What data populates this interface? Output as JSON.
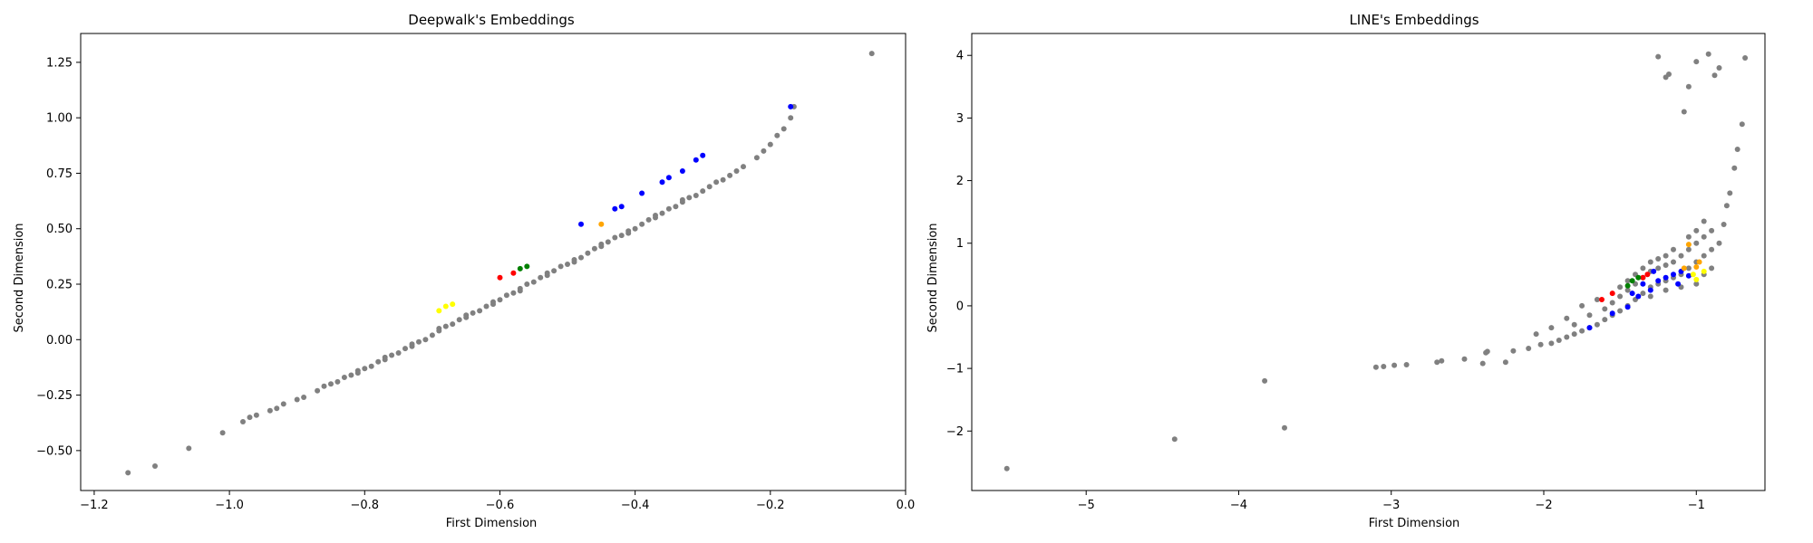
{
  "chart_data": [
    {
      "type": "scatter",
      "title": "Deepwalk's Embeddings",
      "xlabel": "First Dimension",
      "ylabel": "Second Dimension",
      "xlim": [
        -1.22,
        0.0
      ],
      "ylim": [
        -0.68,
        1.38
      ],
      "xticks": [
        -1.2,
        -1.0,
        -0.8,
        -0.6,
        -0.4,
        -0.2,
        0.0
      ],
      "xtick_labels": [
        "−1.2",
        "−1.0",
        "−0.8",
        "−0.6",
        "−0.4",
        "−0.2",
        "0.0"
      ],
      "yticks": [
        -0.5,
        -0.25,
        0.0,
        0.25,
        0.5,
        0.75,
        1.0,
        1.25
      ],
      "ytick_labels": [
        "−0.50",
        "−0.25",
        "0.00",
        "0.25",
        "0.50",
        "0.75",
        "1.00",
        "1.25"
      ],
      "grid": false,
      "series": [
        {
          "color": "#808080",
          "points": [
            [
              -1.15,
              -0.6
            ],
            [
              -1.11,
              -0.57
            ],
            [
              -1.06,
              -0.49
            ],
            [
              -1.01,
              -0.42
            ],
            [
              -0.98,
              -0.37
            ],
            [
              -0.97,
              -0.35
            ],
            [
              -0.96,
              -0.34
            ],
            [
              -0.94,
              -0.32
            ],
            [
              -0.93,
              -0.31
            ],
            [
              -0.92,
              -0.29
            ],
            [
              -0.9,
              -0.27
            ],
            [
              -0.89,
              -0.26
            ],
            [
              -0.87,
              -0.23
            ],
            [
              -0.86,
              -0.21
            ],
            [
              -0.85,
              -0.2
            ],
            [
              -0.84,
              -0.19
            ],
            [
              -0.83,
              -0.17
            ],
            [
              -0.82,
              -0.16
            ],
            [
              -0.81,
              -0.15
            ],
            [
              -0.8,
              -0.13
            ],
            [
              -0.79,
              -0.12
            ],
            [
              -0.78,
              -0.1
            ],
            [
              -0.77,
              -0.09
            ],
            [
              -0.76,
              -0.07
            ],
            [
              -0.75,
              -0.06
            ],
            [
              -0.74,
              -0.04
            ],
            [
              -0.73,
              -0.03
            ],
            [
              -0.72,
              -0.01
            ],
            [
              -0.71,
              0.0
            ],
            [
              -0.7,
              0.02
            ],
            [
              -0.69,
              0.04
            ],
            [
              -0.68,
              0.06
            ],
            [
              -0.67,
              0.07
            ],
            [
              -0.66,
              0.09
            ],
            [
              -0.65,
              0.1
            ],
            [
              -0.64,
              0.12
            ],
            [
              -0.63,
              0.13
            ],
            [
              -0.62,
              0.15
            ],
            [
              -0.61,
              0.17
            ],
            [
              -0.6,
              0.18
            ],
            [
              -0.59,
              0.2
            ],
            [
              -0.58,
              0.21
            ],
            [
              -0.57,
              0.23
            ],
            [
              -0.56,
              0.25
            ],
            [
              -0.55,
              0.26
            ],
            [
              -0.54,
              0.28
            ],
            [
              -0.53,
              0.29
            ],
            [
              -0.52,
              0.31
            ],
            [
              -0.51,
              0.33
            ],
            [
              -0.5,
              0.34
            ],
            [
              -0.49,
              0.36
            ],
            [
              -0.48,
              0.37
            ],
            [
              -0.47,
              0.39
            ],
            [
              -0.46,
              0.41
            ],
            [
              -0.45,
              0.42
            ],
            [
              -0.44,
              0.44
            ],
            [
              -0.43,
              0.46
            ],
            [
              -0.42,
              0.47
            ],
            [
              -0.41,
              0.49
            ],
            [
              -0.4,
              0.5
            ],
            [
              -0.39,
              0.52
            ],
            [
              -0.38,
              0.54
            ],
            [
              -0.37,
              0.55
            ],
            [
              -0.36,
              0.57
            ],
            [
              -0.35,
              0.59
            ],
            [
              -0.34,
              0.6
            ],
            [
              -0.33,
              0.62
            ],
            [
              -0.32,
              0.64
            ],
            [
              -0.31,
              0.65
            ],
            [
              -0.3,
              0.67
            ],
            [
              -0.29,
              0.69
            ],
            [
              -0.28,
              0.71
            ],
            [
              -0.27,
              0.72
            ],
            [
              -0.26,
              0.74
            ],
            [
              -0.25,
              0.76
            ],
            [
              -0.24,
              0.78
            ],
            [
              -0.22,
              0.82
            ],
            [
              -0.21,
              0.85
            ],
            [
              -0.2,
              0.88
            ],
            [
              -0.19,
              0.92
            ],
            [
              -0.18,
              0.95
            ],
            [
              -0.17,
              1.0
            ],
            [
              -0.165,
              1.05
            ],
            [
              -0.05,
              1.29
            ],
            [
              -0.81,
              -0.14
            ],
            [
              -0.77,
              -0.08
            ],
            [
              -0.73,
              -0.02
            ],
            [
              -0.69,
              0.05
            ],
            [
              -0.65,
              0.11
            ],
            [
              -0.61,
              0.16
            ],
            [
              -0.57,
              0.22
            ],
            [
              -0.53,
              0.3
            ],
            [
              -0.49,
              0.35
            ],
            [
              -0.45,
              0.43
            ],
            [
              -0.41,
              0.48
            ],
            [
              -0.37,
              0.56
            ],
            [
              -0.33,
              0.63
            ]
          ]
        },
        {
          "color": "#0000ff",
          "points": [
            [
              -0.17,
              1.05
            ],
            [
              -0.3,
              0.83
            ],
            [
              -0.31,
              0.81
            ],
            [
              -0.33,
              0.76
            ],
            [
              -0.35,
              0.73
            ],
            [
              -0.36,
              0.71
            ],
            [
              -0.39,
              0.66
            ],
            [
              -0.42,
              0.6
            ],
            [
              -0.43,
              0.59
            ],
            [
              -0.48,
              0.52
            ]
          ]
        },
        {
          "color": "#ffff00",
          "points": [
            [
              -0.68,
              0.15
            ],
            [
              -0.69,
              0.13
            ],
            [
              -0.67,
              0.16
            ]
          ]
        },
        {
          "color": "#ff0000",
          "points": [
            [
              -0.58,
              0.3
            ],
            [
              -0.6,
              0.28
            ]
          ]
        },
        {
          "color": "#008000",
          "points": [
            [
              -0.57,
              0.32
            ],
            [
              -0.56,
              0.33
            ]
          ]
        },
        {
          "color": "#ffa500",
          "points": [
            [
              -0.45,
              0.52
            ]
          ]
        }
      ]
    },
    {
      "type": "scatter",
      "title": "LINE's Embeddings",
      "xlabel": "First Dimension",
      "ylabel": "Second Dimension",
      "xlim": [
        -5.75,
        -0.55
      ],
      "ylim": [
        -2.95,
        4.35
      ],
      "xticks": [
        -5,
        -4,
        -3,
        -2,
        -1
      ],
      "xtick_labels": [
        "−5",
        "−4",
        "−3",
        "−2",
        "−1"
      ],
      "yticks": [
        -2,
        -1,
        0,
        1,
        2,
        3,
        4
      ],
      "ytick_labels": [
        "−2",
        "−1",
        "0",
        "1",
        "2",
        "3",
        "4"
      ],
      "grid": false,
      "series": [
        {
          "color": "#808080",
          "points": [
            [
              -5.52,
              -2.6
            ],
            [
              -4.42,
              -2.13
            ],
            [
              -3.83,
              -1.2
            ],
            [
              -3.7,
              -1.95
            ],
            [
              -3.1,
              -0.98
            ],
            [
              -3.05,
              -0.97
            ],
            [
              -2.98,
              -0.95
            ],
            [
              -2.9,
              -0.94
            ],
            [
              -2.7,
              -0.9
            ],
            [
              -2.67,
              -0.88
            ],
            [
              -2.52,
              -0.85
            ],
            [
              -2.4,
              -0.92
            ],
            [
              -2.38,
              -0.75
            ],
            [
              -2.37,
              -0.73
            ],
            [
              -2.25,
              -0.9
            ],
            [
              -2.2,
              -0.72
            ],
            [
              -2.1,
              -0.68
            ],
            [
              -2.02,
              -0.62
            ],
            [
              -1.95,
              -0.6
            ],
            [
              -1.9,
              -0.55
            ],
            [
              -1.85,
              -0.5
            ],
            [
              -1.8,
              -0.45
            ],
            [
              -1.75,
              -0.4
            ],
            [
              -1.7,
              -0.35
            ],
            [
              -1.65,
              -0.3
            ],
            [
              -1.6,
              -0.22
            ],
            [
              -1.55,
              -0.15
            ],
            [
              -1.5,
              -0.08
            ],
            [
              -1.45,
              0.0
            ],
            [
              -1.4,
              0.1
            ],
            [
              -1.35,
              0.2
            ],
            [
              -1.3,
              0.3
            ],
            [
              -1.25,
              0.35
            ],
            [
              -1.2,
              0.4
            ],
            [
              -1.15,
              0.45
            ],
            [
              -1.1,
              0.5
            ],
            [
              -1.05,
              0.6
            ],
            [
              -1.0,
              0.7
            ],
            [
              -0.95,
              0.8
            ],
            [
              -0.9,
              0.9
            ],
            [
              -0.85,
              1.0
            ],
            [
              -0.82,
              1.3
            ],
            [
              -0.8,
              1.6
            ],
            [
              -0.78,
              1.8
            ],
            [
              -0.75,
              2.2
            ],
            [
              -0.73,
              2.5
            ],
            [
              -0.7,
              2.9
            ],
            [
              -0.68,
              3.96
            ],
            [
              -0.85,
              3.8
            ],
            [
              -0.88,
              3.68
            ],
            [
              -0.92,
              4.02
            ],
            [
              -1.0,
              3.9
            ],
            [
              -1.05,
              3.5
            ],
            [
              -1.08,
              3.1
            ],
            [
              -1.25,
              3.98
            ],
            [
              -1.18,
              3.7
            ],
            [
              -1.2,
              3.65
            ],
            [
              -1.55,
              0.05
            ],
            [
              -1.5,
              0.15
            ],
            [
              -1.45,
              0.25
            ],
            [
              -1.4,
              0.35
            ],
            [
              -1.35,
              0.45
            ],
            [
              -1.3,
              0.55
            ],
            [
              -1.25,
              0.6
            ],
            [
              -1.2,
              0.65
            ],
            [
              -1.15,
              0.7
            ],
            [
              -1.1,
              0.8
            ],
            [
              -1.05,
              0.9
            ],
            [
              -1.0,
              1.0
            ],
            [
              -0.95,
              1.1
            ],
            [
              -0.9,
              1.2
            ],
            [
              -1.3,
              0.15
            ],
            [
              -1.2,
              0.25
            ],
            [
              -1.1,
              0.3
            ],
            [
              -1.0,
              0.35
            ],
            [
              -0.95,
              0.5
            ],
            [
              -0.9,
              0.6
            ],
            [
              -1.65,
              0.1
            ],
            [
              -1.75,
              0.0
            ],
            [
              -1.85,
              -0.2
            ],
            [
              -1.95,
              -0.35
            ],
            [
              -2.05,
              -0.45
            ],
            [
              -1.6,
              -0.05
            ],
            [
              -1.7,
              -0.15
            ],
            [
              -1.8,
              -0.3
            ],
            [
              -1.5,
              0.3
            ],
            [
              -1.45,
              0.4
            ],
            [
              -1.4,
              0.5
            ],
            [
              -1.35,
              0.6
            ],
            [
              -1.2,
              0.8
            ],
            [
              -1.15,
              0.9
            ],
            [
              -1.05,
              1.1
            ],
            [
              -1.0,
              1.2
            ],
            [
              -0.95,
              1.35
            ],
            [
              -1.3,
              0.7
            ],
            [
              -1.25,
              0.75
            ]
          ]
        },
        {
          "color": "#0000ff",
          "points": [
            [
              -1.7,
              -0.35
            ],
            [
              -1.55,
              -0.12
            ],
            [
              -1.45,
              -0.02
            ],
            [
              -1.38,
              0.15
            ],
            [
              -1.3,
              0.25
            ],
            [
              -1.25,
              0.4
            ],
            [
              -1.2,
              0.45
            ],
            [
              -1.15,
              0.5
            ],
            [
              -1.1,
              0.55
            ],
            [
              -1.05,
              0.48
            ],
            [
              -1.35,
              0.35
            ],
            [
              -1.28,
              0.55
            ],
            [
              -1.12,
              0.35
            ],
            [
              -1.42,
              0.2
            ]
          ]
        },
        {
          "color": "#ff0000",
          "points": [
            [
              -1.62,
              0.1
            ],
            [
              -1.55,
              0.2
            ],
            [
              -1.35,
              0.45
            ],
            [
              -1.32,
              0.5
            ]
          ]
        },
        {
          "color": "#008000",
          "points": [
            [
              -1.42,
              0.4
            ],
            [
              -1.38,
              0.45
            ],
            [
              -1.45,
              0.32
            ]
          ]
        },
        {
          "color": "#ffff00",
          "points": [
            [
              -1.0,
              0.42
            ],
            [
              -0.95,
              0.55
            ],
            [
              -1.02,
              0.5
            ]
          ]
        },
        {
          "color": "#ffa500",
          "points": [
            [
              -1.05,
              0.98
            ],
            [
              -0.98,
              0.7
            ],
            [
              -1.08,
              0.6
            ],
            [
              -1.0,
              0.62
            ]
          ]
        }
      ]
    }
  ]
}
